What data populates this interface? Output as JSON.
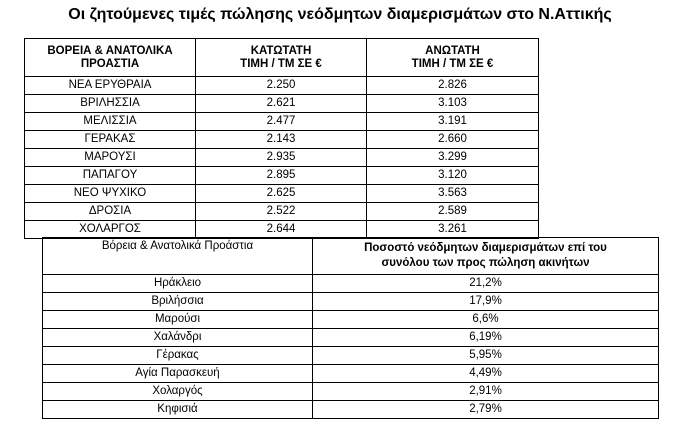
{
  "title": "Οι ζητούμενες τιμές πώλησης νεόδμητων διαμερισμάτων στο Ν.Αττικής",
  "table1": {
    "headers": [
      [
        "ΒΟΡΕΙΑ & ΑΝΑΤΟΛΙΚΑ",
        "ΠΡΟΑΣΤΙΑ"
      ],
      [
        "ΚΑΤΩΤΑΤΗ",
        "ΤΙΜΗ / ΤΜ ΣΕ €"
      ],
      [
        "ΑΝΩΤΑΤΗ",
        "ΤΙΜΗ / ΤΜ ΣΕ €"
      ]
    ],
    "rows": [
      [
        "ΝΕΑ ΕΡΥΘΡΑΙΑ",
        "2.250",
        "2.826"
      ],
      [
        "ΒΡΙΛΗΣΣΙΑ",
        "2.621",
        "3.103"
      ],
      [
        "ΜΕΛΙΣΣΙΑ",
        "2.477",
        "3.191"
      ],
      [
        "ΓΕΡΑΚΑΣ",
        "2.143",
        "2.660"
      ],
      [
        "ΜΑΡΟΥΣΙ",
        "2.935",
        "3.299"
      ],
      [
        "ΠΑΠΑΓΟΥ",
        "2.895",
        "3.120"
      ],
      [
        "ΝΕΟ ΨΥΧΙΚΟ",
        "2.625",
        "3.563"
      ],
      [
        "ΔΡΟΣΙΑ",
        "2.522",
        "2.589"
      ],
      [
        "ΧΟΛΑΡΓΟΣ",
        "2.644",
        "3.261"
      ]
    ]
  },
  "table2": {
    "headers": [
      [
        "Βόρεια & Ανατολικά Προάστια"
      ],
      [
        "Ποσοστό νεόδμητων διαμερισμάτων επί του",
        "συνόλου των προς πώληση ακινήτων"
      ]
    ],
    "rows": [
      [
        "Ηράκλειο",
        "21,2%"
      ],
      [
        "Βριλήσσια",
        "17,9%"
      ],
      [
        "Μαρούσι",
        "6,6%"
      ],
      [
        "Χαλάνδρι",
        "6,19%"
      ],
      [
        "Γέρακας",
        "5,95%"
      ],
      [
        "Αγία Παρασκευή",
        "4,49%"
      ],
      [
        "Χολαργός",
        "2,91%"
      ],
      [
        "Κηφισιά",
        "2,79%"
      ]
    ]
  }
}
